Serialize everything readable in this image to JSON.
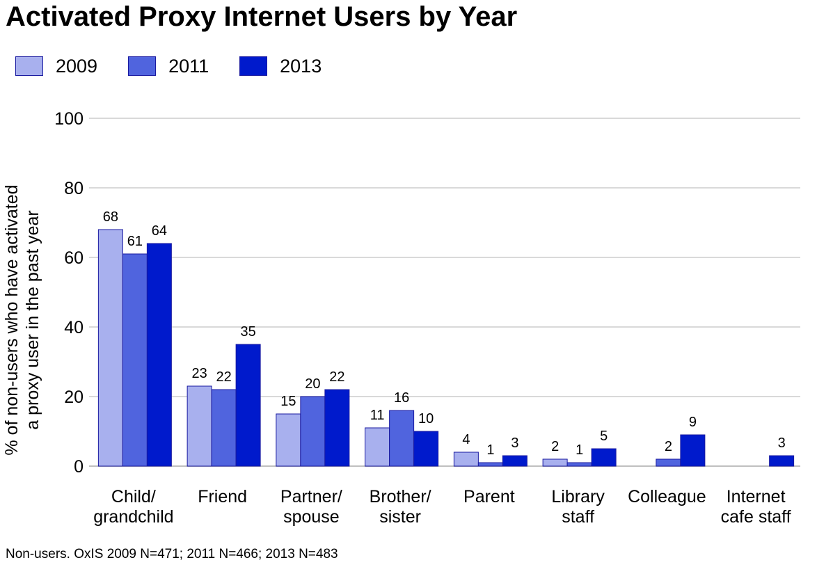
{
  "chart_data": {
    "type": "bar",
    "title": "Activated Proxy Internet Users by Year",
    "ylabel": [
      "% of non-users who have activated",
      "a proxy user in the past year"
    ],
    "xlabel": "",
    "ylim": [
      0,
      100
    ],
    "yticks": [
      0,
      20,
      40,
      60,
      80,
      100
    ],
    "grid": true,
    "legend_position": "top-left",
    "categories": [
      [
        "Child/",
        "grandchild"
      ],
      [
        "Friend"
      ],
      [
        "Partner/",
        "spouse"
      ],
      [
        "Brother/",
        "sister"
      ],
      [
        "Parent"
      ],
      [
        "Library",
        "staff"
      ],
      [
        "Colleague"
      ],
      [
        "Internet",
        "cafe staff"
      ]
    ],
    "series": [
      {
        "name": "2009",
        "color": "#a8b0ee",
        "values": [
          68,
          23,
          15,
          11,
          4,
          2,
          null,
          null
        ]
      },
      {
        "name": "2011",
        "color": "#5064de",
        "values": [
          61,
          22,
          20,
          16,
          1,
          1,
          2,
          null
        ]
      },
      {
        "name": "2013",
        "color": "#001acc",
        "values": [
          64,
          35,
          22,
          10,
          3,
          5,
          9,
          3
        ]
      }
    ]
  },
  "source_note": "Non-users. OxIS 2009 N=471; 2011 N=466; 2013 N=483"
}
